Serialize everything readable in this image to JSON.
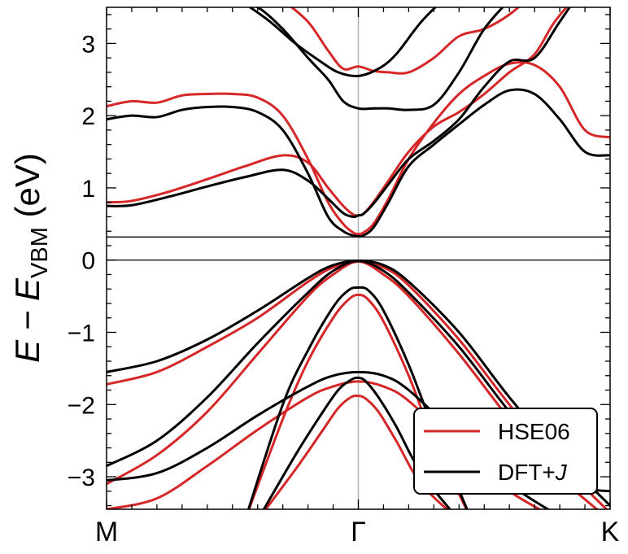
{
  "chart_data": {
    "type": "line",
    "title": "",
    "ylabel": "E − E_VBM (eV)",
    "ylabel_parts": {
      "main": "E − E",
      "sub": "VBM",
      "unit": " (eV)"
    },
    "xlabel": "",
    "ylim": [
      -3.45,
      3.5
    ],
    "xlim": [
      0,
      2
    ],
    "x_ticks": [
      {
        "value": 0,
        "label": "M"
      },
      {
        "value": 1,
        "label": "Γ"
      },
      {
        "value": 2,
        "label": "K"
      }
    ],
    "y_ticks": [
      {
        "value": -3,
        "label": "−3"
      },
      {
        "value": -2,
        "label": "−2"
      },
      {
        "value": -1,
        "label": "−1"
      },
      {
        "value": 0,
        "label": "0"
      },
      {
        "value": 1,
        "label": "1"
      },
      {
        "value": 2,
        "label": "2"
      },
      {
        "value": 3,
        "label": "3"
      }
    ],
    "hlines": [
      0,
      0.32
    ],
    "vlines": [
      1
    ],
    "legend": {
      "position": "bottom-right",
      "entries": [
        {
          "label": "HSE06",
          "color": "#d62728"
        },
        {
          "label": "DFT+J",
          "label_main": "DFT+",
          "label_italic": "J",
          "color": "#000000"
        }
      ]
    },
    "series": [
      {
        "name": "HSE06",
        "color": "#d62728",
        "band": "c1",
        "x": [
          0,
          0.1,
          0.25,
          0.4,
          0.55,
          0.7,
          0.8,
          0.88,
          0.94,
          0.98,
          1.0,
          1.02,
          1.06,
          1.12,
          1.2,
          1.3,
          1.4,
          1.5,
          1.6,
          1.7,
          1.78,
          1.9,
          2.0
        ],
        "y": [
          0.8,
          0.82,
          0.95,
          1.12,
          1.3,
          1.45,
          1.35,
          1.0,
          0.75,
          0.63,
          0.62,
          0.64,
          0.8,
          1.1,
          1.5,
          1.85,
          2.05,
          2.3,
          2.6,
          2.85,
          3.3,
          3.8,
          4.2
        ]
      },
      {
        "name": "HSE06",
        "color": "#d62728",
        "band": "c2",
        "x": [
          0,
          0.1,
          0.2,
          0.3,
          0.4,
          0.5,
          0.6,
          0.7,
          0.8,
          0.88,
          0.94,
          0.98,
          1.0,
          1.02,
          1.06,
          1.12,
          1.2,
          1.3,
          1.4,
          1.5,
          1.6,
          1.7,
          1.8,
          1.9,
          2.0
        ],
        "y": [
          2.13,
          2.2,
          2.18,
          2.28,
          2.3,
          2.3,
          2.25,
          2.0,
          1.4,
          0.8,
          0.5,
          0.38,
          0.36,
          0.38,
          0.5,
          0.85,
          1.4,
          1.9,
          2.3,
          2.55,
          2.72,
          2.7,
          2.4,
          1.8,
          1.7
        ]
      },
      {
        "name": "HSE06",
        "color": "#d62728",
        "band": "c3",
        "x": [
          0.7,
          0.8,
          0.88,
          0.94,
          1.0,
          1.06,
          1.12,
          1.2,
          1.3,
          1.4,
          1.5,
          1.6,
          1.7
        ],
        "y": [
          3.6,
          3.3,
          2.9,
          2.65,
          2.68,
          2.62,
          2.6,
          2.6,
          2.8,
          3.1,
          3.2,
          3.4,
          3.7
        ]
      },
      {
        "name": "DFT+J",
        "color": "#000000",
        "band": "c1",
        "x": [
          0,
          0.1,
          0.25,
          0.4,
          0.55,
          0.7,
          0.8,
          0.88,
          0.94,
          0.98,
          1.0,
          1.02,
          1.06,
          1.12,
          1.2,
          1.3,
          1.4,
          1.5,
          1.6,
          1.7,
          1.8,
          1.9,
          2.0
        ],
        "y": [
          0.75,
          0.76,
          0.88,
          1.02,
          1.15,
          1.25,
          1.1,
          0.85,
          0.65,
          0.6,
          0.62,
          0.64,
          0.78,
          1.05,
          1.4,
          1.65,
          1.95,
          2.4,
          2.75,
          2.8,
          3.3,
          3.8,
          4.2
        ]
      },
      {
        "name": "DFT+J",
        "color": "#000000",
        "band": "c2",
        "x": [
          0,
          0.1,
          0.2,
          0.3,
          0.4,
          0.5,
          0.6,
          0.7,
          0.8,
          0.88,
          0.94,
          0.98,
          1.0,
          1.02,
          1.06,
          1.12,
          1.2,
          1.3,
          1.4,
          1.5,
          1.6,
          1.7,
          1.8,
          1.9,
          2.0
        ],
        "y": [
          1.95,
          2.0,
          1.98,
          2.08,
          2.12,
          2.12,
          2.05,
          1.8,
          1.2,
          0.6,
          0.4,
          0.34,
          0.33,
          0.34,
          0.45,
          0.8,
          1.3,
          1.6,
          1.88,
          2.15,
          2.35,
          2.3,
          1.95,
          1.5,
          1.45
        ]
      },
      {
        "name": "DFT+J",
        "color": "#000000",
        "band": "c3",
        "x": [
          0.5,
          0.6,
          0.7,
          0.8,
          0.88,
          0.94,
          1.0,
          1.06,
          1.12,
          1.2,
          1.3,
          1.4,
          1.5,
          1.6
        ],
        "y": [
          3.6,
          3.5,
          3.2,
          2.8,
          2.5,
          2.2,
          2.1,
          2.1,
          2.1,
          2.08,
          2.15,
          2.6,
          3.2,
          3.6
        ]
      },
      {
        "name": "DFT+J",
        "color": "#000000",
        "band": "c4",
        "x": [
          0.55,
          0.65,
          0.75,
          0.85,
          0.92,
          1.0,
          1.08,
          1.15,
          1.25,
          1.35
        ],
        "y": [
          3.55,
          3.3,
          3.0,
          2.75,
          2.6,
          2.55,
          2.65,
          2.85,
          3.3,
          3.65
        ]
      },
      {
        "name": "HSE06",
        "color": "#d62728",
        "band": "v1",
        "x": [
          0,
          0.2,
          0.4,
          0.6,
          0.8,
          0.9,
          1.0,
          1.1,
          1.2,
          1.4,
          1.6,
          1.8,
          2.0
        ],
        "y": [
          -3.1,
          -2.7,
          -2.1,
          -1.3,
          -0.5,
          -0.2,
          -0.02,
          -0.2,
          -0.5,
          -1.3,
          -2.2,
          -3.0,
          -3.6
        ]
      },
      {
        "name": "HSE06",
        "color": "#d62728",
        "band": "v2",
        "x": [
          0,
          0.2,
          0.4,
          0.6,
          0.8,
          0.9,
          1.0,
          1.1,
          1.2,
          1.4,
          1.6,
          1.8,
          2.0
        ],
        "y": [
          -1.72,
          -1.55,
          -1.2,
          -0.8,
          -0.3,
          -0.1,
          -0.02,
          -0.1,
          -0.35,
          -1.1,
          -2.0,
          -2.8,
          -3.5
        ]
      },
      {
        "name": "HSE06",
        "color": "#d62728",
        "band": "v3",
        "x": [
          0.55,
          0.7,
          0.8,
          0.9,
          0.96,
          1.0,
          1.04,
          1.1,
          1.2,
          1.3,
          1.45
        ],
        "y": [
          -3.6,
          -2.2,
          -1.4,
          -0.8,
          -0.55,
          -0.48,
          -0.55,
          -0.85,
          -1.6,
          -2.5,
          -3.6
        ]
      },
      {
        "name": "HSE06",
        "color": "#d62728",
        "band": "v4",
        "x": [
          0,
          0.2,
          0.4,
          0.6,
          0.8,
          0.9,
          1.0,
          1.1,
          1.2,
          1.4,
          1.6,
          1.8
        ],
        "y": [
          -3.45,
          -3.3,
          -2.85,
          -2.35,
          -1.9,
          -1.75,
          -1.68,
          -1.75,
          -1.95,
          -2.6,
          -3.2,
          -3.6
        ]
      },
      {
        "name": "HSE06",
        "color": "#d62728",
        "band": "v5",
        "x": [
          0.6,
          0.75,
          0.85,
          0.92,
          0.97,
          1.0,
          1.03,
          1.08,
          1.15,
          1.25,
          1.4
        ],
        "y": [
          -3.6,
          -2.9,
          -2.4,
          -2.05,
          -1.9,
          -1.88,
          -1.92,
          -2.1,
          -2.5,
          -3.1,
          -3.6
        ]
      },
      {
        "name": "DFT+J",
        "color": "#000000",
        "band": "v1",
        "x": [
          0,
          0.2,
          0.4,
          0.6,
          0.8,
          0.9,
          1.0,
          1.1,
          1.2,
          1.4,
          1.6,
          1.8,
          1.9,
          2.0
        ],
        "y": [
          -2.85,
          -2.5,
          -1.9,
          -1.15,
          -0.45,
          -0.15,
          -0.01,
          -0.15,
          -0.45,
          -1.2,
          -2.1,
          -2.9,
          -3.15,
          -3.2
        ]
      },
      {
        "name": "DFT+J",
        "color": "#000000",
        "band": "v2",
        "x": [
          0,
          0.2,
          0.4,
          0.6,
          0.8,
          0.9,
          1.0,
          1.1,
          1.2,
          1.4,
          1.6,
          1.8,
          2.0
        ],
        "y": [
          -1.55,
          -1.4,
          -1.1,
          -0.7,
          -0.25,
          -0.07,
          -0.01,
          -0.07,
          -0.3,
          -1.0,
          -1.9,
          -2.7,
          -3.4
        ]
      },
      {
        "name": "DFT+J",
        "color": "#000000",
        "band": "v3",
        "x": [
          0.55,
          0.7,
          0.8,
          0.9,
          0.96,
          1.0,
          1.04,
          1.1,
          1.2,
          1.3,
          1.45
        ],
        "y": [
          -3.6,
          -2.0,
          -1.25,
          -0.65,
          -0.42,
          -0.38,
          -0.42,
          -0.7,
          -1.45,
          -2.35,
          -3.6
        ]
      },
      {
        "name": "DFT+J",
        "color": "#000000",
        "band": "v4",
        "x": [
          0,
          0.2,
          0.4,
          0.6,
          0.8,
          0.9,
          1.0,
          1.1,
          1.2,
          1.4,
          1.6,
          1.8
        ],
        "y": [
          -3.05,
          -2.95,
          -2.6,
          -2.15,
          -1.75,
          -1.6,
          -1.55,
          -1.6,
          -1.8,
          -2.45,
          -3.1,
          -3.55
        ]
      },
      {
        "name": "DFT+J",
        "color": "#000000",
        "band": "v5",
        "x": [
          0.6,
          0.75,
          0.85,
          0.92,
          0.97,
          1.0,
          1.03,
          1.08,
          1.15,
          1.25,
          1.4
        ],
        "y": [
          -3.6,
          -2.7,
          -2.15,
          -1.8,
          -1.66,
          -1.63,
          -1.68,
          -1.9,
          -2.3,
          -2.95,
          -3.6
        ]
      }
    ]
  }
}
